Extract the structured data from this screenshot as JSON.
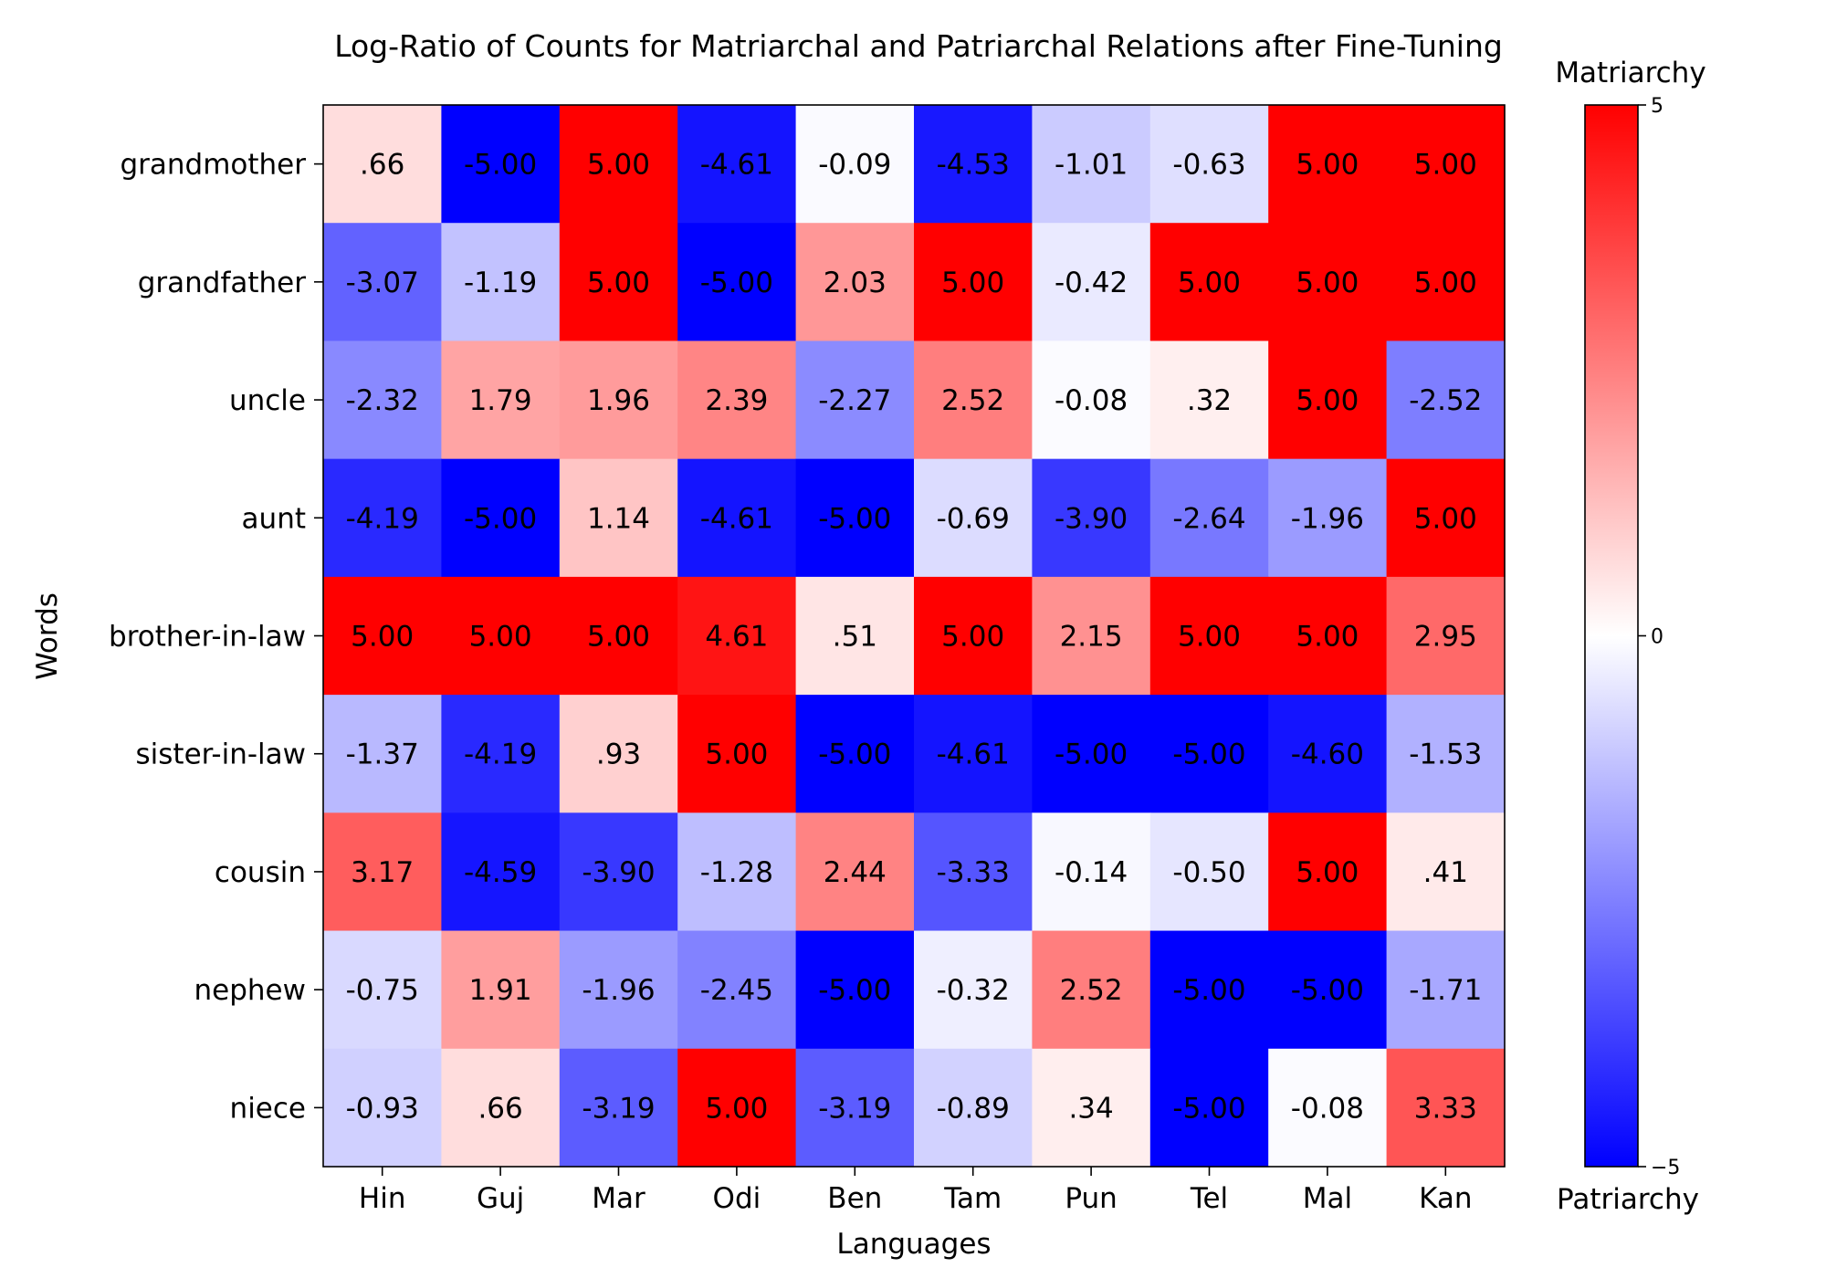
{
  "chart_data": {
    "type": "heatmap",
    "title": "Log-Ratio of Counts for Matriarchal and Patriarchal Relations after Fine-Tuning",
    "xlabel": "Languages",
    "ylabel": "Words",
    "x": [
      "Hin",
      "Guj",
      "Mar",
      "Odi",
      "Ben",
      "Tam",
      "Pun",
      "Tel",
      "Mal",
      "Kan"
    ],
    "y": [
      "grandmother",
      "grandfather",
      "uncle",
      "aunt",
      "brother-in-law",
      "sister-in-law",
      "cousin",
      "nephew",
      "niece"
    ],
    "values": [
      [
        0.66,
        -5.0,
        5.0,
        -4.61,
        -0.09,
        -4.53,
        -1.01,
        -0.63,
        5.0,
        5.0
      ],
      [
        -3.07,
        -1.19,
        5.0,
        -5.0,
        2.03,
        5.0,
        -0.42,
        5.0,
        5.0,
        5.0
      ],
      [
        -2.32,
        1.79,
        1.96,
        2.39,
        -2.27,
        2.52,
        -0.08,
        0.32,
        5.0,
        -2.52
      ],
      [
        -4.19,
        -5.0,
        1.14,
        -4.61,
        -5.0,
        -0.69,
        -3.9,
        -2.64,
        -1.96,
        5.0
      ],
      [
        5.0,
        5.0,
        5.0,
        4.61,
        0.51,
        5.0,
        2.15,
        5.0,
        5.0,
        2.95
      ],
      [
        -1.37,
        -4.19,
        0.93,
        5.0,
        -5.0,
        -4.61,
        -5.0,
        -5.0,
        -4.6,
        -1.53
      ],
      [
        3.17,
        -4.59,
        -3.9,
        -1.28,
        2.44,
        -3.33,
        -0.14,
        -0.5,
        5.0,
        0.41
      ],
      [
        -0.75,
        1.91,
        -1.96,
        -2.45,
        -5.0,
        -0.32,
        2.52,
        -5.0,
        -5.0,
        -1.71
      ],
      [
        -0.93,
        0.66,
        -3.19,
        5.0,
        -3.19,
        -0.89,
        0.34,
        -5.0,
        -0.08,
        3.33
      ]
    ],
    "cell_labels": [
      [
        ".66",
        "-5.00",
        "5.00",
        "-4.61",
        "-0.09",
        "-4.53",
        "-1.01",
        "-0.63",
        "5.00",
        "5.00"
      ],
      [
        "-3.07",
        "-1.19",
        "5.00",
        "-5.00",
        "2.03",
        "5.00",
        "-0.42",
        "5.00",
        "5.00",
        "5.00"
      ],
      [
        "-2.32",
        "1.79",
        "1.96",
        "2.39",
        "-2.27",
        "2.52",
        "-0.08",
        ".32",
        "5.00",
        "-2.52"
      ],
      [
        "-4.19",
        "-5.00",
        "1.14",
        "-4.61",
        "-5.00",
        "-0.69",
        "-3.90",
        "-2.64",
        "-1.96",
        "5.00"
      ],
      [
        "5.00",
        "5.00",
        "5.00",
        "4.61",
        ".51",
        "5.00",
        "2.15",
        "5.00",
        "5.00",
        "2.95"
      ],
      [
        "-1.37",
        "-4.19",
        ".93",
        "5.00",
        "-5.00",
        "-4.61",
        "-5.00",
        "-5.00",
        "-4.60",
        "-1.53"
      ],
      [
        "3.17",
        "-4.59",
        "-3.90",
        "-1.28",
        "2.44",
        "-3.33",
        "-0.14",
        "-0.50",
        "5.00",
        ".41"
      ],
      [
        "-0.75",
        "1.91",
        "-1.96",
        "-2.45",
        "-5.00",
        "-0.32",
        "2.52",
        "-5.00",
        "-5.00",
        "-1.71"
      ],
      [
        "-0.93",
        ".66",
        "-3.19",
        "5.00",
        "-3.19",
        "-0.89",
        ".34",
        "-5.00",
        "-0.08",
        "3.33"
      ]
    ],
    "colorbar": {
      "range": [
        -5,
        5
      ],
      "ticks": [
        -5,
        0,
        5
      ],
      "tick_labels": [
        "−5",
        "0",
        "5"
      ],
      "top_label": "Matriarchy",
      "bottom_label": "Patriarchy",
      "colormap": "bwr",
      "low_color": "#0000ff",
      "mid_color": "#ffffff",
      "high_color": "#ff0000"
    },
    "legend": "colorbar-right",
    "grid": false
  }
}
